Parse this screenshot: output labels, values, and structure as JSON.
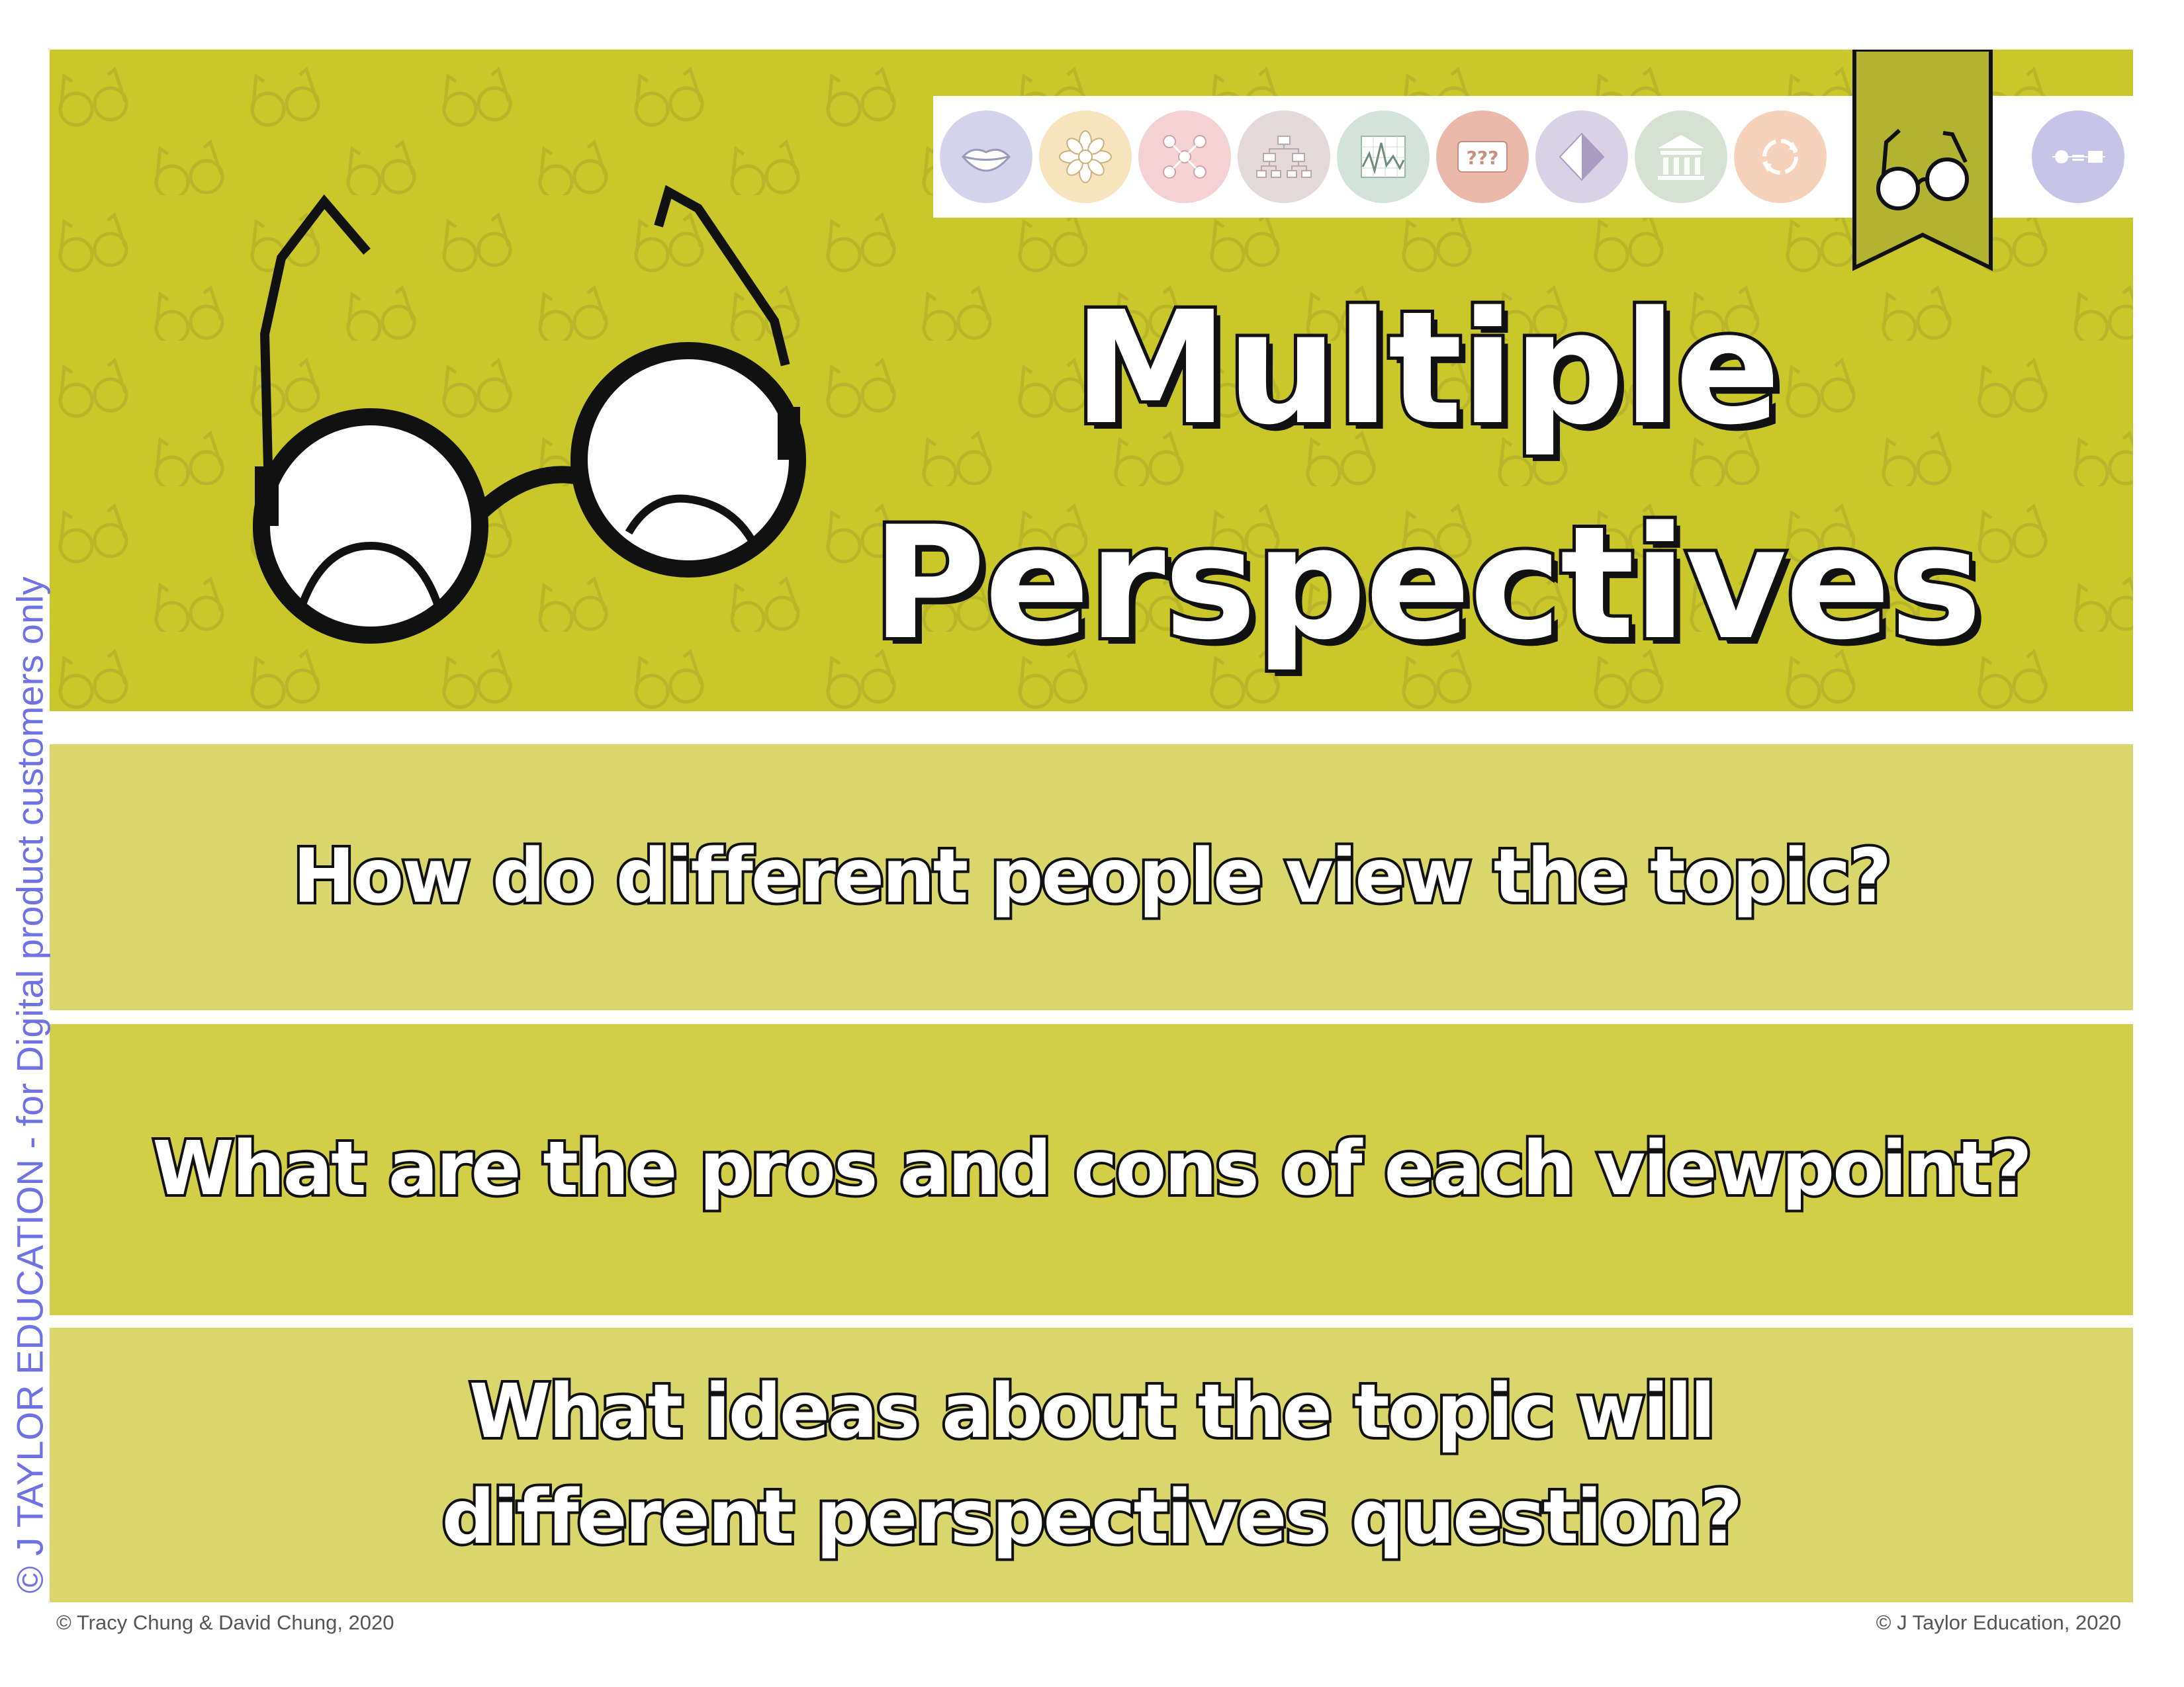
{
  "header": {
    "title_line_1": "Multiple",
    "title_line_2": "Perspectives",
    "background_color": "#c9c72a",
    "main_icon": "glasses-icon"
  },
  "icon_strip": {
    "items": [
      {
        "icon": "lips-icon",
        "color": "#d3d4ec",
        "active": false
      },
      {
        "icon": "flower-icon",
        "color": "#f7e3bd",
        "active": false
      },
      {
        "icon": "network-dots-icon",
        "color": "#f4d1d2",
        "active": false
      },
      {
        "icon": "hierarchy-icon",
        "color": "#e5d8d8",
        "active": false
      },
      {
        "icon": "line-graph-icon",
        "color": "#d3e3d9",
        "active": false
      },
      {
        "icon": "question-marks-icon",
        "color": "#eab9ab",
        "active": false
      },
      {
        "icon": "diamond-icon",
        "color": "#d9d2e7",
        "active": false
      },
      {
        "icon": "institution-columns-icon",
        "color": "#d6e2d1",
        "active": false
      },
      {
        "icon": "cycle-arrows-icon",
        "color": "#f6d2bb",
        "active": false
      },
      {
        "icon": "glasses-icon",
        "color": "#b3b332",
        "active": true
      },
      {
        "icon": "equation-shapes-icon",
        "color": "#c6c4e7",
        "active": false
      }
    ]
  },
  "questions": [
    "How do different people view the topic?",
    "What are the pros and cons of each viewpoint?",
    "What ideas about the topic will different perspectives question?"
  ],
  "watermark": "© J TAYLOR EDUCATION - for Digital product customers only",
  "footer": {
    "left": "© Tracy Chung & David Chung, 2020",
    "right": "© J Taylor Education, 2020"
  }
}
